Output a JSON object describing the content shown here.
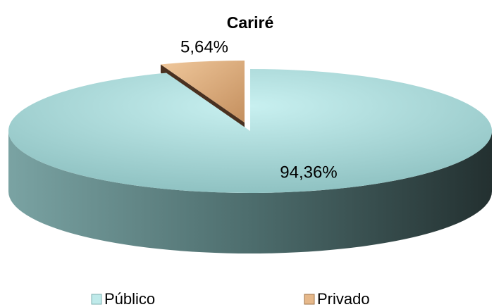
{
  "chart_data": {
    "type": "pie",
    "title": "Cariré",
    "categories": [
      "Público",
      "Privado"
    ],
    "values": [
      94.36,
      5.64
    ],
    "value_labels": [
      "94,36%",
      "5,64%"
    ],
    "colors": [
      "#bfeaea",
      "#e6b88a"
    ],
    "legend": "bottom"
  }
}
